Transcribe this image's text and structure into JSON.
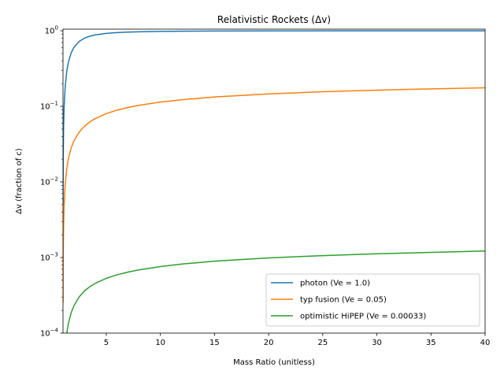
{
  "chart_data": {
    "type": "line",
    "title": "Relativistic Rockets (Δv)",
    "xlabel": "Mass Ratio (unitless)",
    "ylabel": "Δv (fraction of c)",
    "xlim": [
      1,
      40
    ],
    "ylim": [
      0.0001,
      1.05
    ],
    "yscale": "log",
    "grid": false,
    "legend_position": "lower-right",
    "x_ticks": [
      5,
      10,
      15,
      20,
      25,
      30,
      35,
      40
    ],
    "x_tick_labels": [
      "5",
      "10",
      "15",
      "20",
      "25",
      "30",
      "35",
      "40"
    ],
    "y_ticks": [
      0.0001,
      0.001,
      0.01,
      0.1,
      1
    ],
    "y_tick_labels": [
      [
        "10",
        "−4"
      ],
      [
        "10",
        "−3"
      ],
      [
        "10",
        "−2"
      ],
      [
        "10",
        "−1"
      ],
      [
        "10",
        "0"
      ]
    ],
    "series": [
      {
        "name": "photon (Ve = 1.0)",
        "color": "#1f77b4",
        "x": [
          1.005,
          1.02,
          1.05,
          1.1,
          1.2,
          1.35,
          1.5,
          1.75,
          2,
          2.5,
          3,
          3.5,
          4,
          5,
          6,
          7,
          8,
          10,
          12,
          15,
          20,
          25,
          30,
          35,
          40
        ],
        "values": [
          0.005,
          0.0198,
          0.0488,
          0.095,
          0.18,
          0.292,
          0.385,
          0.508,
          0.6,
          0.724,
          0.8,
          0.849,
          0.882,
          0.923,
          0.946,
          0.96,
          0.969,
          0.98,
          0.986,
          0.991,
          0.995,
          0.9968,
          0.9978,
          0.9984,
          0.9988
        ]
      },
      {
        "name": "typ fusion (Ve = 0.05)",
        "color": "#ff7f0e",
        "x": [
          1.005,
          1.02,
          1.05,
          1.1,
          1.2,
          1.35,
          1.5,
          1.75,
          2,
          2.5,
          3,
          3.5,
          4,
          5,
          6,
          7,
          8,
          10,
          12,
          15,
          20,
          25,
          30,
          35,
          40
        ],
        "values": [
          0.00025,
          0.00099,
          0.00244,
          0.00477,
          0.00911,
          0.015,
          0.0203,
          0.028,
          0.0347,
          0.0458,
          0.0549,
          0.0625,
          0.0691,
          0.0801,
          0.0891,
          0.0966,
          0.1031,
          0.1138,
          0.1224,
          0.133,
          0.1461,
          0.1559,
          0.1637,
          0.1703,
          0.1759
        ]
      },
      {
        "name": "optimistic HiPEP (Ve = 0.00033)",
        "color": "#2ca02c",
        "x": [
          1.3,
          1.35,
          1.4,
          1.5,
          1.75,
          2,
          2.5,
          3,
          3.5,
          4,
          5,
          6,
          7,
          8,
          10,
          12,
          15,
          20,
          25,
          30,
          35,
          40
        ],
        "values": [
          8.66e-05,
          9.9e-05,
          0.000111,
          0.000134,
          0.000185,
          0.000229,
          0.000302,
          0.000363,
          0.000413,
          0.000457,
          0.000531,
          0.000591,
          0.000642,
          0.000686,
          0.00076,
          0.00082,
          0.000894,
          0.000989,
          0.00106,
          0.00112,
          0.00117,
          0.00122
        ]
      }
    ]
  }
}
